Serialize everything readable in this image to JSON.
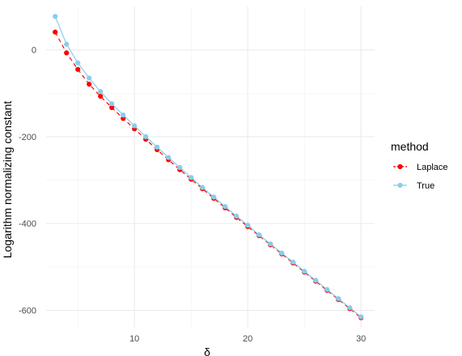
{
  "chart_data": {
    "type": "line",
    "title": "",
    "xlabel": "δ",
    "ylabel": "Logarithm normalizing constant",
    "xlim": [
      2.2,
      31.2
    ],
    "ylim": [
      -640,
      100
    ],
    "x_ticks": [
      10,
      20,
      30
    ],
    "x_tick_labels": [
      "10",
      "20",
      "30"
    ],
    "y_ticks": [
      0,
      -200,
      -400,
      -600
    ],
    "y_tick_labels": [
      "0",
      "-200",
      "-400",
      "-600"
    ],
    "grid": true,
    "legend": {
      "title": "method",
      "position": "right"
    },
    "x": [
      3,
      4,
      5,
      6,
      7,
      8,
      9,
      10,
      11,
      12,
      13,
      14,
      15,
      16,
      17,
      18,
      19,
      20,
      21,
      22,
      23,
      24,
      25,
      26,
      27,
      28,
      29,
      30
    ],
    "series": [
      {
        "name": "Laplace",
        "color": "#ff0000",
        "line_style": "dashed",
        "values": [
          41,
          -7,
          -45,
          -79,
          -107,
          -133,
          -158,
          -182,
          -206,
          -230,
          -253,
          -276,
          -298,
          -320,
          -342,
          -364,
          -386,
          -407,
          -428,
          -449,
          -470,
          -491,
          -512,
          -533,
          -554,
          -575,
          -596,
          -617
        ]
      },
      {
        "name": "True",
        "color": "#87ceeb",
        "line_style": "solid",
        "values": [
          77,
          13,
          -30,
          -65,
          -96,
          -124,
          -150,
          -175,
          -200,
          -224,
          -248,
          -271,
          -294,
          -317,
          -339,
          -361,
          -383,
          -404,
          -426,
          -447,
          -468,
          -489,
          -510,
          -531,
          -552,
          -573,
          -594,
          -615
        ]
      }
    ]
  }
}
